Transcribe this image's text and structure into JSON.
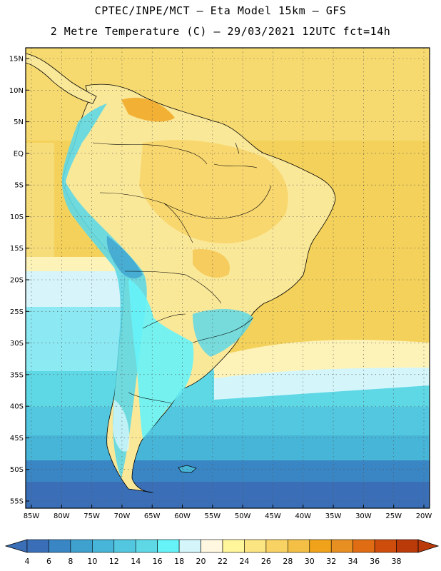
{
  "header": {
    "line1": "CPTEC/INPE/MCT –  Eta Model 15km – GFS",
    "line2": "2 Metre Temperature (C) – 29/03/2021 12UTC fct=14h"
  },
  "map": {
    "lat_labels": [
      "15N",
      "10N",
      "5N",
      "EQ",
      "5S",
      "10S",
      "15S",
      "20S",
      "25S",
      "30S",
      "35S",
      "40S",
      "45S",
      "50S",
      "55S"
    ],
    "lon_labels": [
      "85W",
      "80W",
      "75W",
      "70W",
      "65W",
      "60W",
      "55W",
      "50W",
      "45W",
      "40W",
      "35W",
      "30W",
      "25W",
      "20W"
    ]
  },
  "colorbar": {
    "labels": [
      "4",
      "6",
      "8",
      "10",
      "12",
      "14",
      "16",
      "18",
      "20",
      "22",
      "24",
      "26",
      "28",
      "30",
      "32",
      "34",
      "36",
      "38"
    ],
    "colors": [
      "#3a6fb8",
      "#3a86c4",
      "#3fa1ce",
      "#47b5d7",
      "#52c7df",
      "#5fd8e6",
      "#66f3f8",
      "#d4f6fb",
      "#fff7e0",
      "#fff59a",
      "#fbe582",
      "#f8d262",
      "#f3c045",
      "#f0a31a",
      "#e88f22",
      "#e06d13",
      "#cf4d0c",
      "#bb3a0a"
    ]
  }
}
